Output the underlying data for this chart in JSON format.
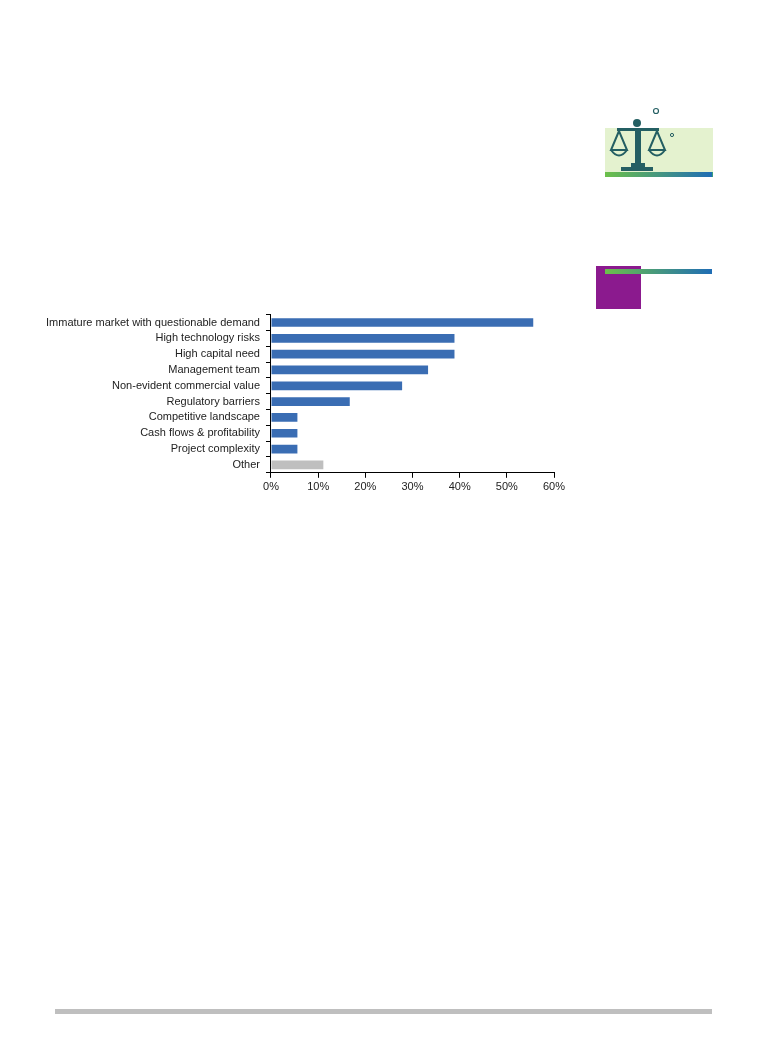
{
  "chart_data": {
    "type": "bar",
    "orientation": "horizontal",
    "categories": [
      "Immature market with questionable demand",
      "High technology risks",
      "High capital need",
      "Management team",
      "Non-evident commercial value",
      "Regulatory barriers",
      "Competitive landscape",
      "Cash flows & profitability",
      "Project complexity",
      "Other"
    ],
    "values": [
      55.6,
      38.9,
      38.9,
      33.3,
      27.8,
      16.7,
      5.6,
      5.6,
      5.6,
      11.1
    ],
    "colors": [
      "#3a6db3",
      "#3a6db3",
      "#3a6db3",
      "#3a6db3",
      "#3a6db3",
      "#3a6db3",
      "#3a6db3",
      "#3a6db3",
      "#3a6db3",
      "#bfbfbf"
    ],
    "xlim": [
      0,
      60
    ],
    "xticks": [
      {
        "value": 0,
        "label": "0%"
      },
      {
        "value": 10,
        "label": "10%"
      },
      {
        "value": 20,
        "label": "20%"
      },
      {
        "value": 30,
        "label": "30%"
      },
      {
        "value": 40,
        "label": "40%"
      },
      {
        "value": 50,
        "label": "50%"
      },
      {
        "value": 60,
        "label": "60%"
      }
    ],
    "grid": false,
    "legend": false
  }
}
